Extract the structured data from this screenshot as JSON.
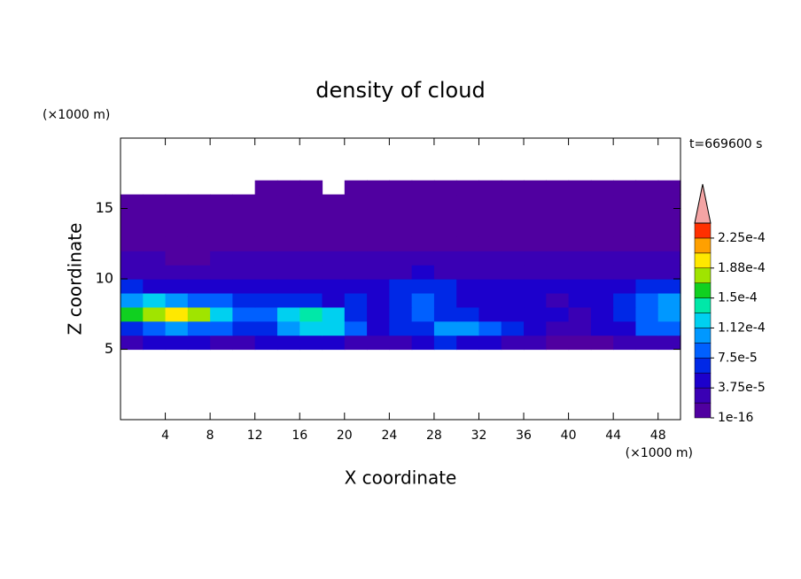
{
  "chart_data": {
    "type": "contour",
    "title": "density of cloud",
    "x_label": "X coordinate",
    "y_label": "Z coordinate",
    "x_unit": "(×1000 m)",
    "y_unit": "(×1000 m)",
    "annotation": "t=669600 s",
    "xlim": [
      0,
      50
    ],
    "ylim": [
      0,
      20
    ],
    "xticks": [
      4,
      8,
      12,
      16,
      20,
      24,
      28,
      32,
      36,
      40,
      44,
      48
    ],
    "yticks": [
      5,
      10,
      15
    ],
    "x": [
      1,
      3,
      5,
      7,
      9,
      11,
      13,
      15,
      17,
      19,
      21,
      23,
      25,
      27,
      29,
      31,
      33,
      35,
      37,
      39,
      41,
      43,
      45,
      47,
      49
    ],
    "y": [
      5.5,
      6.5,
      7.5,
      8.5,
      9.5,
      10.5,
      11.5,
      12.5,
      13.5,
      14.5,
      15.5,
      16.5
    ],
    "z": [
      [
        2e-05,
        4e-05,
        5e-05,
        4e-05,
        3e-05,
        3e-05,
        4e-05,
        5e-05,
        5e-05,
        4e-05,
        3e-05,
        2e-05,
        3e-05,
        4e-05,
        6e-05,
        5e-05,
        4e-05,
        3e-05,
        2e-05,
        1e-05,
        1e-05,
        1e-05,
        2e-05,
        3e-05,
        3e-05
      ],
      [
        6e-05,
        9e-05,
        0.0001,
        9e-05,
        8e-05,
        6e-05,
        7e-05,
        0.00011,
        0.00013,
        0.00012,
        9e-05,
        5e-05,
        6e-05,
        7e-05,
        0.0001,
        0.00011,
        9e-05,
        6e-05,
        4e-05,
        3e-05,
        3e-05,
        4e-05,
        5e-05,
        8e-05,
        9e-05
      ],
      [
        0.00015,
        0.00017,
        0.00019,
        0.00017,
        0.00012,
        8e-05,
        9e-05,
        0.00013,
        0.00014,
        0.00012,
        7e-05,
        5e-05,
        6e-05,
        8e-05,
        7e-05,
        6e-05,
        5e-05,
        4e-05,
        4e-05,
        4e-05,
        3e-05,
        4e-05,
        6e-05,
        9e-05,
        0.00011
      ],
      [
        0.00011,
        0.00012,
        0.00011,
        9e-05,
        8e-05,
        7e-05,
        6e-05,
        7e-05,
        6e-05,
        5e-05,
        6e-05,
        5e-05,
        7e-05,
        8e-05,
        6e-05,
        5e-05,
        5e-05,
        4e-05,
        4e-05,
        3e-05,
        4e-05,
        5e-05,
        7e-05,
        9e-05,
        0.0001
      ],
      [
        6e-05,
        5e-05,
        5e-05,
        4e-05,
        4e-05,
        4e-05,
        4e-05,
        4e-05,
        4e-05,
        4e-05,
        4e-05,
        5e-05,
        7e-05,
        7e-05,
        6e-05,
        5e-05,
        4e-05,
        4e-05,
        4e-05,
        5e-05,
        4e-05,
        4e-05,
        5e-05,
        6e-05,
        7e-05
      ],
      [
        3e-05,
        3e-05,
        3e-05,
        3e-05,
        3e-05,
        3e-05,
        3e-05,
        3e-05,
        3e-05,
        3e-05,
        3e-05,
        3e-05,
        3e-05,
        4e-05,
        3e-05,
        3e-05,
        3e-05,
        3e-05,
        3e-05,
        3e-05,
        3e-05,
        3e-05,
        3e-05,
        3e-05,
        3e-05
      ],
      [
        2e-05,
        2e-05,
        1e-05,
        1e-05,
        2e-05,
        2e-05,
        2e-05,
        2e-05,
        2e-05,
        2e-05,
        2e-05,
        2e-05,
        2e-05,
        2e-05,
        2e-05,
        2e-05,
        2e-05,
        2e-05,
        2e-05,
        2e-05,
        2e-05,
        2e-05,
        2e-05,
        2e-05,
        2e-05
      ],
      [
        8e-06,
        8e-06,
        8e-06,
        8e-06,
        8e-06,
        8e-06,
        8e-06,
        8e-06,
        8e-06,
        8e-06,
        8e-06,
        8e-06,
        8e-06,
        8e-06,
        8e-06,
        8e-06,
        8e-06,
        8e-06,
        8e-06,
        8e-06,
        8e-06,
        8e-06,
        8e-06,
        8e-06,
        8e-06
      ],
      [
        8e-06,
        8e-06,
        8e-06,
        8e-06,
        8e-06,
        8e-06,
        8e-06,
        8e-06,
        8e-06,
        8e-06,
        8e-06,
        8e-06,
        8e-06,
        8e-06,
        8e-06,
        8e-06,
        8e-06,
        8e-06,
        8e-06,
        8e-06,
        8e-06,
        8e-06,
        8e-06,
        8e-06,
        8e-06
      ],
      [
        8e-06,
        8e-06,
        8e-06,
        8e-06,
        8e-06,
        8e-06,
        8e-06,
        8e-06,
        8e-06,
        8e-06,
        8e-06,
        8e-06,
        8e-06,
        8e-06,
        8e-06,
        8e-06,
        8e-06,
        8e-06,
        8e-06,
        8e-06,
        8e-06,
        8e-06,
        8e-06,
        8e-06,
        8e-06
      ],
      [
        8e-06,
        8e-06,
        8e-06,
        8e-06,
        8e-06,
        8e-06,
        8e-06,
        8e-06,
        8e-06,
        8e-06,
        8e-06,
        8e-06,
        8e-06,
        8e-06,
        8e-06,
        8e-06,
        8e-06,
        8e-06,
        8e-06,
        8e-06,
        8e-06,
        8e-06,
        8e-06,
        8e-06,
        8e-06
      ],
      [
        null,
        null,
        null,
        null,
        null,
        null,
        8e-06,
        8e-06,
        8e-06,
        null,
        8e-06,
        8e-06,
        8e-06,
        8e-06,
        8e-06,
        8e-06,
        8e-06,
        8e-06,
        8e-06,
        8e-06,
        8e-06,
        8e-06,
        8e-06,
        8e-06,
        8e-06
      ]
    ],
    "colorbar": {
      "levels": [
        1e-16,
        1.875e-05,
        3.75e-05,
        5.625e-05,
        7.5e-05,
        9.375e-05,
        0.0001125,
        0.00013125,
        0.00015,
        0.00016875,
        0.0001875,
        0.00020625,
        0.000225,
        0.00024375
      ],
      "colors": [
        "#5000a0",
        "#3a00b4",
        "#1c00cc",
        "#0028e6",
        "#0060ff",
        "#0098ff",
        "#00d0f0",
        "#00e8a8",
        "#10d020",
        "#a0e400",
        "#ffe800",
        "#ffa000",
        "#ff3000"
      ],
      "over_color": "#f4a4a4",
      "ticks": [
        1e-16,
        {
          "value": 3.75e-05,
          "label": "3.75e-5"
        },
        {
          "value": 7.5e-05,
          "label": "7.5e-5"
        },
        {
          "value": 0.0001125,
          "label": "1.12e-4"
        },
        {
          "value": 0.00015,
          "label": "1.5e-4"
        },
        {
          "value": 0.0001875,
          "label": "1.88e-4"
        },
        {
          "value": 0.000225,
          "label": "2.25e-4"
        }
      ]
    }
  }
}
